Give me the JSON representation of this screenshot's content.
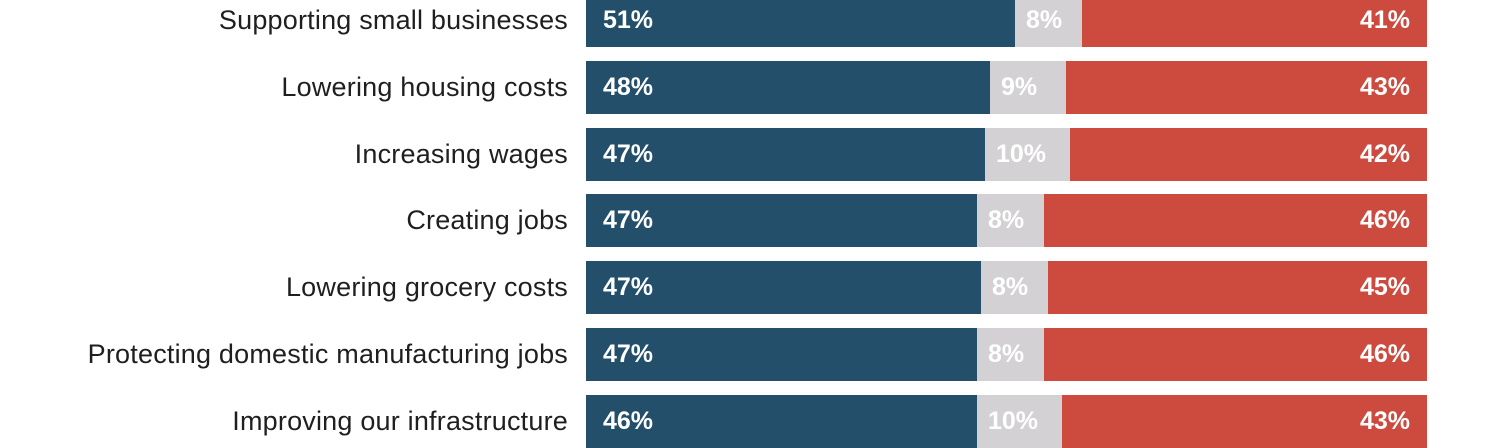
{
  "colors": {
    "series_a": "#234f6b",
    "series_b": "#d3d1d4",
    "series_c": "#cc4a3e"
  },
  "chart_data": {
    "type": "bar",
    "stacked": true,
    "orientation": "horizontal",
    "categories": [
      "Supporting small businesses",
      "Lowering housing costs",
      "Increasing wages",
      "Creating jobs",
      "Lowering grocery costs",
      "Protecting domestic manufacturing jobs",
      "Improving our infrastructure"
    ],
    "series": [
      {
        "values": [
          51,
          48,
          47,
          47,
          47,
          47,
          46
        ],
        "color": "#234f6b"
      },
      {
        "values": [
          8,
          9,
          10,
          8,
          8,
          8,
          10
        ],
        "color": "#d3d1d4"
      },
      {
        "values": [
          41,
          43,
          42,
          46,
          45,
          46,
          43
        ],
        "color": "#cc4a3e"
      }
    ],
    "value_suffix": "%",
    "title": "",
    "xlabel": "",
    "ylabel": ""
  }
}
